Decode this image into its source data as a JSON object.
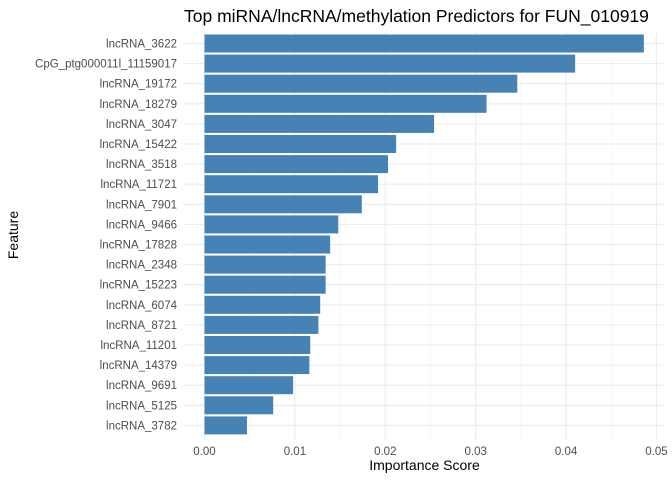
{
  "chart_data": {
    "type": "bar",
    "orientation": "horizontal",
    "title": "Top miRNA/lncRNA/methylation Predictors for FUN_010919",
    "xlabel": "Importance Score",
    "ylabel": "Feature",
    "xlim": [
      0,
      0.05
    ],
    "x_ticks": [
      "0.00",
      "0.01",
      "0.02",
      "0.03",
      "0.04",
      "0.05"
    ],
    "grid": true,
    "legend": "none",
    "bar_color": "#4682B4",
    "categories": [
      "lncRNA_3622",
      "CpG_ptg000011l_11159017",
      "lncRNA_19172",
      "lncRNA_18279",
      "lncRNA_3047",
      "lncRNA_15422",
      "lncRNA_3518",
      "lncRNA_11721",
      "lncRNA_7901",
      "lncRNA_9466",
      "lncRNA_17828",
      "lncRNA_2348",
      "lncRNA_15223",
      "lncRNA_6074",
      "lncRNA_8721",
      "lncRNA_11201",
      "lncRNA_14379",
      "lncRNA_9691",
      "lncRNA_5125",
      "lncRNA_3782"
    ],
    "values": [
      0.0486,
      0.041,
      0.0346,
      0.0312,
      0.0254,
      0.0212,
      0.0203,
      0.0192,
      0.0174,
      0.0148,
      0.0139,
      0.0134,
      0.0134,
      0.0128,
      0.0126,
      0.0117,
      0.0116,
      0.0098,
      0.0076,
      0.0047
    ]
  }
}
